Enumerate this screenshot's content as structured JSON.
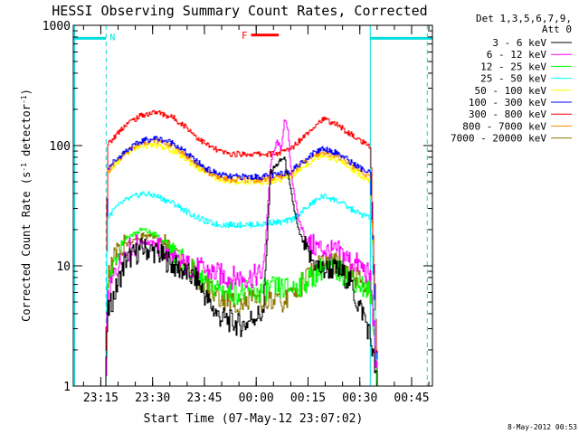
{
  "chart_data": {
    "type": "line",
    "title": "HESSI Observing Summary Count Rates, Corrected",
    "xlabel": "Start Time (07-May-12 23:07:02)",
    "ylabel": "Corrected Count Rate (s⁻¹ detector⁻¹)",
    "ylabel_parts": [
      "Corrected Count Rate (s",
      "-1",
      " detector",
      "-1",
      ")"
    ],
    "yscale": "log",
    "ylim": [
      1,
      1000
    ],
    "xlim_minutes": [
      0,
      104
    ],
    "x_ticks": [
      {
        "label": "23:15",
        "min": 7.97
      },
      {
        "label": "23:30",
        "min": 22.97
      },
      {
        "label": "23:45",
        "min": 37.97
      },
      {
        "label": "00:00",
        "min": 52.97
      },
      {
        "label": "00:15",
        "min": 67.97
      },
      {
        "label": "00:30",
        "min": 82.97
      },
      {
        "label": "00:45",
        "min": 97.97
      }
    ],
    "y_ticks": [
      {
        "label": "1",
        "value": 1
      },
      {
        "label": "10",
        "value": 10
      },
      {
        "label": "100",
        "value": 100
      },
      {
        "label": "1000",
        "value": 1000
      }
    ],
    "legend_header": [
      "Det 1,3,5,6,7,9,",
      "Att 0"
    ],
    "legend_position": "right",
    "series": [
      {
        "name": "3 - 6 keV",
        "color": "#000000",
        "points": [
          [
            7,
            1
          ],
          [
            9.3,
            1
          ],
          [
            9.8,
            4
          ],
          [
            12,
            6
          ],
          [
            15,
            11
          ],
          [
            20,
            14
          ],
          [
            24,
            13
          ],
          [
            29,
            10
          ],
          [
            33,
            8.5
          ],
          [
            36,
            7.5
          ],
          [
            39,
            5
          ],
          [
            42,
            3.8
          ],
          [
            45,
            3.5
          ],
          [
            48,
            3.2
          ],
          [
            50,
            3.3
          ],
          [
            52,
            3.8
          ],
          [
            55,
            4
          ],
          [
            57,
            60
          ],
          [
            59,
            70
          ],
          [
            61,
            80
          ],
          [
            63,
            40
          ],
          [
            65,
            20
          ],
          [
            68,
            12
          ],
          [
            72,
            9
          ],
          [
            74,
            9.5
          ],
          [
            77,
            9
          ],
          [
            80,
            7.5
          ],
          [
            82,
            5
          ],
          [
            84,
            4
          ],
          [
            86,
            2.5
          ],
          [
            88,
            1
          ],
          [
            105,
            1
          ]
        ]
      },
      {
        "name": "6 - 12 keV",
        "color": "#ff00ff",
        "points": [
          [
            7,
            1
          ],
          [
            9.3,
            1
          ],
          [
            9.8,
            5
          ],
          [
            12,
            9
          ],
          [
            15,
            13
          ],
          [
            20,
            16
          ],
          [
            24,
            15
          ],
          [
            29,
            11
          ],
          [
            33,
            10
          ],
          [
            36,
            9.5
          ],
          [
            39,
            9
          ],
          [
            42,
            8.5
          ],
          [
            45,
            8
          ],
          [
            48,
            8
          ],
          [
            51,
            8
          ],
          [
            54,
            8.5
          ],
          [
            55,
            9
          ],
          [
            57,
            70
          ],
          [
            59,
            110
          ],
          [
            60,
            90
          ],
          [
            61,
            160
          ],
          [
            62,
            140
          ],
          [
            63,
            60
          ],
          [
            65,
            25
          ],
          [
            68,
            15
          ],
          [
            72,
            14
          ],
          [
            74,
            13
          ],
          [
            77,
            13
          ],
          [
            80,
            11
          ],
          [
            83,
            10
          ],
          [
            86,
            8
          ],
          [
            88,
            1
          ],
          [
            105,
            1
          ]
        ]
      },
      {
        "name": "12 - 25 keV",
        "color": "#00ff00",
        "points": [
          [
            7,
            1
          ],
          [
            9.3,
            1
          ],
          [
            9.8,
            6
          ],
          [
            12,
            12
          ],
          [
            15,
            17
          ],
          [
            20,
            20
          ],
          [
            24,
            18
          ],
          [
            29,
            13
          ],
          [
            33,
            10
          ],
          [
            36,
            8
          ],
          [
            39,
            7
          ],
          [
            42,
            6.5
          ],
          [
            45,
            6
          ],
          [
            48,
            6
          ],
          [
            51,
            6
          ],
          [
            54,
            6
          ],
          [
            56,
            6.5
          ],
          [
            60,
            6.5
          ],
          [
            63,
            6.5
          ],
          [
            66,
            7
          ],
          [
            69,
            8
          ],
          [
            72,
            9.5
          ],
          [
            74,
            9.5
          ],
          [
            77,
            9
          ],
          [
            80,
            8
          ],
          [
            83,
            7
          ],
          [
            86,
            6
          ],
          [
            88,
            1
          ],
          [
            105,
            1
          ]
        ]
      },
      {
        "name": "25 - 50 keV",
        "color": "#00ffff",
        "points": [
          [
            7,
            1
          ],
          [
            9.3,
            1
          ],
          [
            9.8,
            25
          ],
          [
            12,
            30
          ],
          [
            15,
            35
          ],
          [
            20,
            40
          ],
          [
            24,
            38
          ],
          [
            29,
            33
          ],
          [
            33,
            28
          ],
          [
            36,
            25
          ],
          [
            39,
            23
          ],
          [
            42,
            22
          ],
          [
            45,
            22
          ],
          [
            48,
            22
          ],
          [
            51,
            22
          ],
          [
            54,
            22
          ],
          [
            57,
            23
          ],
          [
            60,
            23
          ],
          [
            63,
            24
          ],
          [
            66,
            28
          ],
          [
            69,
            33
          ],
          [
            72,
            38
          ],
          [
            74,
            37
          ],
          [
            77,
            34
          ],
          [
            80,
            30
          ],
          [
            83,
            27
          ],
          [
            86,
            25
          ],
          [
            88,
            1
          ],
          [
            105,
            1
          ]
        ]
      },
      {
        "name": "50 - 100 keV",
        "color": "#ffff00",
        "points": [
          [
            7,
            1
          ],
          [
            9.3,
            1
          ],
          [
            9.8,
            60
          ],
          [
            12,
            70
          ],
          [
            15,
            85
          ],
          [
            20,
            100
          ],
          [
            24,
            100
          ],
          [
            29,
            90
          ],
          [
            33,
            75
          ],
          [
            36,
            65
          ],
          [
            39,
            58
          ],
          [
            42,
            53
          ],
          [
            45,
            50
          ],
          [
            48,
            50
          ],
          [
            51,
            50
          ],
          [
            54,
            50
          ],
          [
            57,
            50
          ],
          [
            60,
            52
          ],
          [
            63,
            55
          ],
          [
            66,
            65
          ],
          [
            69,
            75
          ],
          [
            72,
            85
          ],
          [
            74,
            80
          ],
          [
            77,
            75
          ],
          [
            80,
            65
          ],
          [
            83,
            57
          ],
          [
            86,
            50
          ],
          [
            88,
            1
          ],
          [
            105,
            1
          ]
        ]
      },
      {
        "name": "100 - 300 keV",
        "color": "#0000ff",
        "points": [
          [
            7,
            1
          ],
          [
            9.3,
            1
          ],
          [
            9.8,
            65
          ],
          [
            12,
            75
          ],
          [
            15,
            90
          ],
          [
            20,
            110
          ],
          [
            24,
            115
          ],
          [
            29,
            105
          ],
          [
            33,
            85
          ],
          [
            36,
            72
          ],
          [
            39,
            63
          ],
          [
            42,
            58
          ],
          [
            45,
            55
          ],
          [
            48,
            55
          ],
          [
            51,
            55
          ],
          [
            54,
            55
          ],
          [
            57,
            56
          ],
          [
            60,
            58
          ],
          [
            63,
            62
          ],
          [
            66,
            72
          ],
          [
            69,
            85
          ],
          [
            72,
            95
          ],
          [
            74,
            92
          ],
          [
            77,
            85
          ],
          [
            80,
            74
          ],
          [
            83,
            65
          ],
          [
            86,
            58
          ],
          [
            88,
            1
          ],
          [
            105,
            1
          ]
        ]
      },
      {
        "name": "300 - 800 keV",
        "color": "#ff0000",
        "points": [
          [
            7,
            1
          ],
          [
            9.3,
            1
          ],
          [
            9.8,
            100
          ],
          [
            12,
            120
          ],
          [
            15,
            150
          ],
          [
            20,
            180
          ],
          [
            24,
            190
          ],
          [
            29,
            170
          ],
          [
            33,
            140
          ],
          [
            36,
            115
          ],
          [
            39,
            100
          ],
          [
            42,
            90
          ],
          [
            45,
            85
          ],
          [
            48,
            85
          ],
          [
            51,
            85
          ],
          [
            54,
            85
          ],
          [
            57,
            85
          ],
          [
            60,
            87
          ],
          [
            63,
            95
          ],
          [
            66,
            115
          ],
          [
            69,
            140
          ],
          [
            72,
            165
          ],
          [
            74,
            160
          ],
          [
            77,
            145
          ],
          [
            80,
            125
          ],
          [
            83,
            110
          ],
          [
            86,
            95
          ],
          [
            88,
            1
          ],
          [
            105,
            1
          ]
        ]
      },
      {
        "name": "800 - 7000 keV",
        "color": "#ff8c00",
        "points": [
          [
            7,
            1
          ],
          [
            9.3,
            1
          ],
          [
            9.8,
            60
          ],
          [
            12,
            72
          ],
          [
            15,
            88
          ],
          [
            20,
            105
          ],
          [
            24,
            110
          ],
          [
            29,
            100
          ],
          [
            33,
            80
          ],
          [
            36,
            68
          ],
          [
            39,
            60
          ],
          [
            42,
            55
          ],
          [
            45,
            52
          ],
          [
            48,
            52
          ],
          [
            51,
            52
          ],
          [
            54,
            52
          ],
          [
            57,
            53
          ],
          [
            60,
            55
          ],
          [
            63,
            60
          ],
          [
            66,
            70
          ],
          [
            69,
            80
          ],
          [
            72,
            88
          ],
          [
            74,
            86
          ],
          [
            77,
            80
          ],
          [
            80,
            70
          ],
          [
            83,
            62
          ],
          [
            86,
            55
          ],
          [
            88,
            1
          ],
          [
            105,
            1
          ]
        ]
      },
      {
        "name": "7000 - 20000 keV",
        "color": "#8b7500",
        "points": [
          [
            7,
            1
          ],
          [
            9.3,
            1
          ],
          [
            9.8,
            8
          ],
          [
            12,
            12
          ],
          [
            15,
            15
          ],
          [
            20,
            18
          ],
          [
            24,
            17
          ],
          [
            29,
            13
          ],
          [
            33,
            10
          ],
          [
            36,
            8
          ],
          [
            39,
            6.5
          ],
          [
            42,
            5.5
          ],
          [
            45,
            5
          ],
          [
            48,
            5
          ],
          [
            51,
            5
          ],
          [
            54,
            5
          ],
          [
            57,
            5
          ],
          [
            60,
            5
          ],
          [
            63,
            5.5
          ],
          [
            66,
            7
          ],
          [
            69,
            9
          ],
          [
            72,
            11
          ],
          [
            74,
            11
          ],
          [
            77,
            10
          ],
          [
            80,
            8.5
          ],
          [
            83,
            7.5
          ],
          [
            86,
            7
          ],
          [
            88,
            1
          ],
          [
            105,
            1
          ]
        ]
      }
    ],
    "annotations": {
      "N": {
        "label": "N",
        "color": "#00dddd",
        "y_value": 780,
        "segments": [
          [
            0,
            9.5
          ],
          [
            86,
            104
          ]
        ],
        "dashed_lines": [
          9.5,
          102.5
        ],
        "solid_lines": [
          0.4,
          86
        ]
      },
      "F": {
        "label": "F",
        "color": "#ff0000",
        "y_value": 830,
        "start": 51.5,
        "end": 59.5
      }
    }
  },
  "timestamp": "8-May-2012 00:53"
}
